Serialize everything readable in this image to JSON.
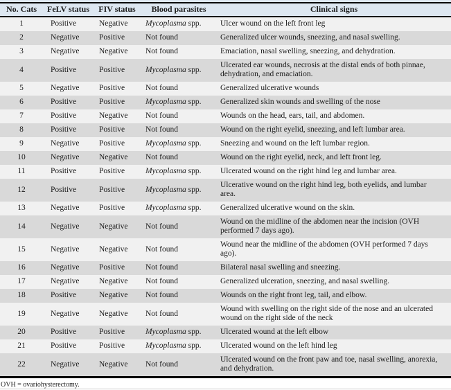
{
  "table": {
    "columns": [
      {
        "label": "No. Cats"
      },
      {
        "label": "FeLV status"
      },
      {
        "label": "FIV status"
      },
      {
        "label": "Blood parasites"
      },
      {
        "label": "Clinical signs"
      }
    ],
    "rows": [
      {
        "no": "1",
        "felv": "Positive",
        "fiv": "Negative",
        "parasites": {
          "genus": "Mycoplasma",
          "suffix": " spp."
        },
        "signs": "Ulcer wound on the left front leg"
      },
      {
        "no": "2",
        "felv": "Negative",
        "fiv": "Positive",
        "parasites": {
          "text": "Not found"
        },
        "signs": "Generalized ulcer wounds, sneezing, and nasal swelling."
      },
      {
        "no": "3",
        "felv": "Negative",
        "fiv": "Negative",
        "parasites": {
          "text": "Not found"
        },
        "signs": "Emaciation, nasal swelling, sneezing, and dehydration."
      },
      {
        "no": "4",
        "felv": "Positive",
        "fiv": "Positive",
        "parasites": {
          "genus": "Mycoplasma",
          "suffix": " spp."
        },
        "signs": "Ulcerated ear wounds, necrosis at the distal ends of both pinnae, dehydration, and emaciation."
      },
      {
        "no": "5",
        "felv": "Negative",
        "fiv": "Positive",
        "parasites": {
          "text": "Not found"
        },
        "signs": "Generalized ulcerative wounds"
      },
      {
        "no": "6",
        "felv": "Positive",
        "fiv": "Positive",
        "parasites": {
          "genus": "Mycoplasma",
          "suffix": " spp."
        },
        "signs": "Generalized skin wounds and swelling of the nose"
      },
      {
        "no": "7",
        "felv": "Positive",
        "fiv": "Negative",
        "parasites": {
          "text": "Not found"
        },
        "signs": "Wounds on the head, ears, tail, and abdomen."
      },
      {
        "no": "8",
        "felv": "Positive",
        "fiv": "Positive",
        "parasites": {
          "text": "Not found"
        },
        "signs": "Wound on the right eyelid, sneezing, and left lumbar area."
      },
      {
        "no": "9",
        "felv": "Negative",
        "fiv": "Positive",
        "parasites": {
          "genus": "Mycoplasma",
          "suffix": " spp."
        },
        "signs": "Sneezing and wound on the left lumbar region."
      },
      {
        "no": "10",
        "felv": "Negative",
        "fiv": "Negative",
        "parasites": {
          "text": "Not found"
        },
        "signs": "Wound on the right eyelid, neck, and left front leg."
      },
      {
        "no": "11",
        "felv": "Positive",
        "fiv": "Positive",
        "parasites": {
          "genus": "Mycoplasma",
          "suffix": " spp."
        },
        "signs": "Ulcerated wound on the right hind leg and lumbar area."
      },
      {
        "no": "12",
        "felv": "Positive",
        "fiv": "Positive",
        "parasites": {
          "genus": "Mycoplasma",
          "suffix": " spp."
        },
        "signs": "Ulcerative wound on the right hind leg, both eyelids, and lumbar area."
      },
      {
        "no": "13",
        "felv": "Negative",
        "fiv": "Positive",
        "parasites": {
          "genus": "Mycoplasma",
          "suffix": " spp."
        },
        "signs": "Generalized ulcerative wound on the skin."
      },
      {
        "no": "14",
        "felv": "Negative",
        "fiv": "Negative",
        "parasites": {
          "text": "Not found"
        },
        "signs": "Wound on the midline of the abdomen near the incision (OVH performed 7 days ago)."
      },
      {
        "no": "15",
        "felv": "Negative",
        "fiv": "Negative",
        "parasites": {
          "text": "Not found"
        },
        "signs": "Wound near the midline of the abdomen (OVH performed 7 days ago)."
      },
      {
        "no": "16",
        "felv": "Negative",
        "fiv": "Positive",
        "parasites": {
          "text": "Not found"
        },
        "signs": "Bilateral nasal swelling and sneezing."
      },
      {
        "no": "17",
        "felv": "Negative",
        "fiv": "Negative",
        "parasites": {
          "text": "Not found"
        },
        "signs": "Generalized ulceration, sneezing, and nasal swelling."
      },
      {
        "no": "18",
        "felv": "Positive",
        "fiv": "Negative",
        "parasites": {
          "text": "Not found"
        },
        "signs": "Wounds on the right front leg, tail, and elbow."
      },
      {
        "no": "19",
        "felv": "Negative",
        "fiv": "Negative",
        "parasites": {
          "text": "Not found"
        },
        "signs": "Wound with swelling on the right side of the nose and an ulcerated wound on the right side of the neck"
      },
      {
        "no": "20",
        "felv": "Positive",
        "fiv": "Positive",
        "parasites": {
          "genus": "Mycoplasma",
          "suffix": " spp."
        },
        "signs": "Ulcerated wound at the left elbow"
      },
      {
        "no": "21",
        "felv": "Positive",
        "fiv": "Positive",
        "parasites": {
          "genus": "Mycoplasma",
          "suffix": " spp."
        },
        "signs": "Ulcerated wound on the left hind leg"
      },
      {
        "no": "22",
        "felv": "Negative",
        "fiv": "Negative",
        "parasites": {
          "text": "Not found"
        },
        "signs": "Ulcerated wound on the front paw and toe, nasal swelling, anorexia, and dehydration."
      }
    ]
  },
  "footnote": "OVH = ovariohysterectomy.",
  "colors": {
    "header_bg": "#dde7f1",
    "row_odd_bg": "#f1f1f1",
    "row_even_bg": "#d9d9d9",
    "border_color": "#000000",
    "text_color": "#1c1c1c"
  }
}
